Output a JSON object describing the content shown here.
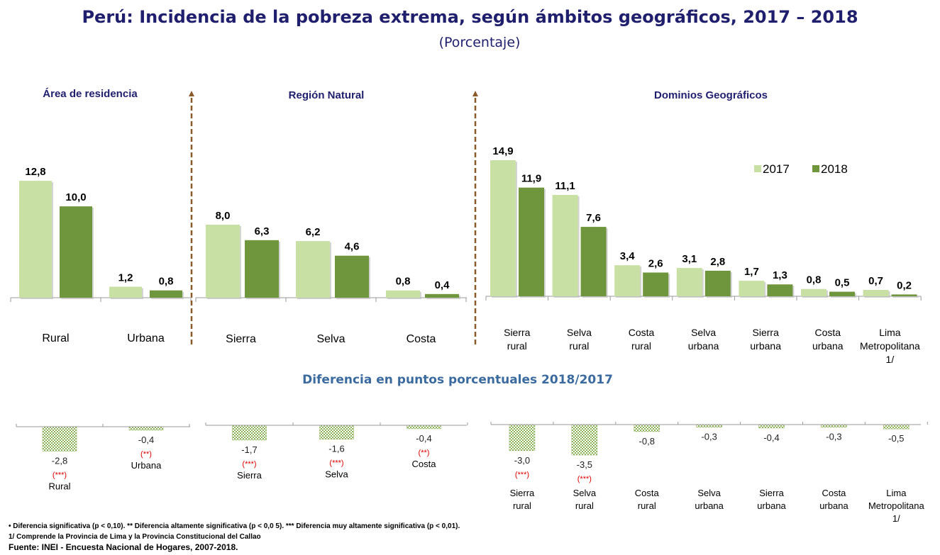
{
  "title": "Perú: Incidencia de la pobreza extrema, según ámbitos geográficos, 2017 – 2018",
  "subtitle": "(Porcentaje)",
  "diff_title": "Diferencia en puntos porcentuales 2018/2017",
  "colors": {
    "y2017": "#c8e0a3",
    "y2018": "#70963d",
    "diff": "#8fb45e",
    "sig": "#e00000",
    "divider": "#8b5a2b",
    "title": "#1f1f6e"
  },
  "chart_data": [
    {
      "type": "bar",
      "title": "Área de residencia",
      "categories": [
        "Rural",
        "Urbana"
      ],
      "series": [
        {
          "name": "2017",
          "values": [
            12.8,
            1.2
          ],
          "labels": [
            "12,8",
            "1,2"
          ]
        },
        {
          "name": "2018",
          "values": [
            10.0,
            0.8
          ],
          "labels": [
            "10,0",
            "0,8"
          ]
        }
      ],
      "ylim": [
        0,
        15
      ],
      "diff": {
        "values": [
          -2.8,
          -0.4
        ],
        "labels": [
          "-2,8",
          "-0,4"
        ],
        "significance": [
          "(***)",
          "(**)"
        ]
      }
    },
    {
      "type": "bar",
      "title": "Región Natural",
      "categories": [
        "Sierra",
        "Selva",
        "Costa"
      ],
      "series": [
        {
          "name": "2017",
          "values": [
            8.0,
            6.2,
            0.8
          ],
          "labels": [
            "8,0",
            "6,2",
            "0,8"
          ]
        },
        {
          "name": "2018",
          "values": [
            6.3,
            4.6,
            0.4
          ],
          "labels": [
            "6,3",
            "4,6",
            "0,4"
          ]
        }
      ],
      "ylim": [
        0,
        15
      ],
      "diff": {
        "values": [
          -1.7,
          -1.6,
          -0.4
        ],
        "labels": [
          "-1,7",
          "-1,6",
          "-0,4"
        ],
        "significance": [
          "(***)",
          "(***)",
          "(**)"
        ]
      }
    },
    {
      "type": "bar",
      "title": "Dominios Geográficos",
      "categories": [
        "Sierra rural",
        "Selva rural",
        "Costa rural",
        "Selva urbana",
        "Sierra urbana",
        "Costa urbana",
        "Lima Metropolitana 1/"
      ],
      "category_lines": [
        [
          "Sierra",
          "rural"
        ],
        [
          "Selva",
          "rural"
        ],
        [
          "Costa",
          "rural"
        ],
        [
          "Selva",
          "urbana"
        ],
        [
          "Sierra",
          "urbana"
        ],
        [
          "Costa",
          "urbana"
        ],
        [
          "Lima",
          "Metropolitana",
          "1/"
        ]
      ],
      "series": [
        {
          "name": "2017",
          "values": [
            14.9,
            11.1,
            3.4,
            3.1,
            1.7,
            0.8,
            0.7
          ],
          "labels": [
            "14,9",
            "11,1",
            "3,4",
            "3,1",
            "1,7",
            "0,8",
            "0,7"
          ]
        },
        {
          "name": "2018",
          "values": [
            11.9,
            7.6,
            2.6,
            2.8,
            1.3,
            0.5,
            0.2
          ],
          "labels": [
            "11,9",
            "7,6",
            "2,6",
            "2,8",
            "1,3",
            "0,5",
            "0,2"
          ]
        }
      ],
      "ylim": [
        0,
        15
      ],
      "legend": {
        "placement": "top-right",
        "entries": [
          "2017",
          "2018"
        ]
      },
      "diff": {
        "values": [
          -3.0,
          -3.5,
          -0.8,
          -0.3,
          -0.4,
          -0.3,
          -0.5
        ],
        "labels": [
          "-3,0",
          "-3,5",
          "-0,8",
          "-0,3",
          "-0,4",
          "-0,3",
          "-0,5"
        ],
        "significance": [
          "(***)",
          "(***)",
          "",
          "",
          "",
          "",
          ""
        ]
      }
    }
  ],
  "notes": {
    "line1": "•   Diferencia significativa (p <  0,10).  ** Diferencia altamente significativa (p < 0,0 5). *** Diferencia muy altamente significativa (p < 0,01).",
    "line2": "1/ Comprende la Provincia de Lima y la Provincia Constitucional del Callao",
    "source": "Fuente: INEI - Encuesta Nacional de Hogares, 2007-2018."
  }
}
